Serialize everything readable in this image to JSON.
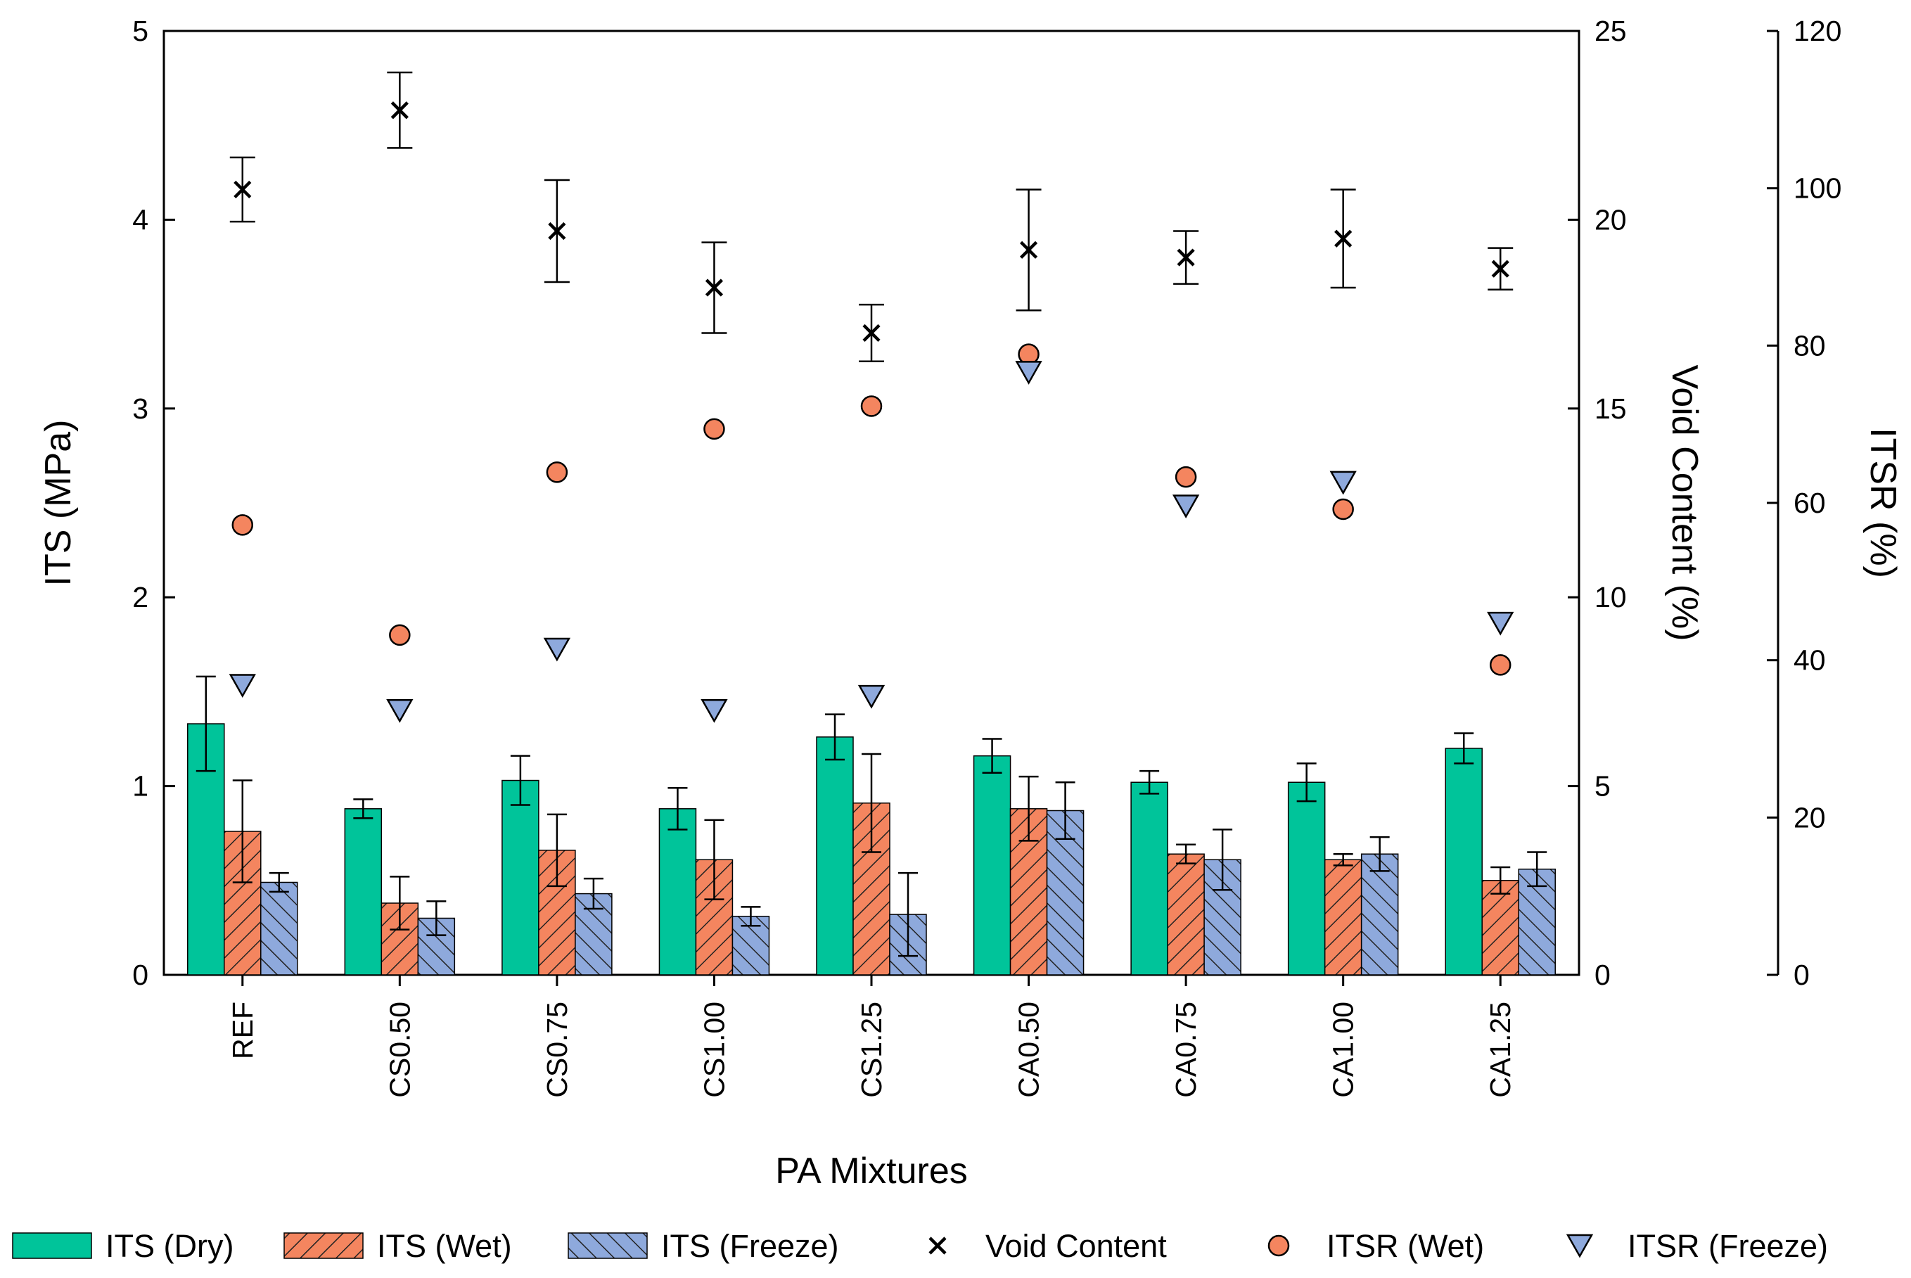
{
  "chart_data": {
    "type": "bar",
    "xlabel": "PA Mixtures",
    "ylabel": "ITS (MPa)",
    "y2label": "Void Content (%)",
    "y3label": "ITSR (%)",
    "ylim": [
      0,
      5
    ],
    "y2lim": [
      0,
      25
    ],
    "y3lim": [
      0,
      120
    ],
    "yticks": [
      "0",
      "1",
      "2",
      "3",
      "4",
      "5"
    ],
    "y2ticks": [
      "0",
      "5",
      "10",
      "15",
      "20",
      "25"
    ],
    "y3ticks": [
      "0",
      "20",
      "40",
      "60",
      "80",
      "100",
      "120"
    ],
    "grid": false,
    "legend_position": "bottom",
    "categories": [
      "REF",
      "CS0.50",
      "CS0.75",
      "CS1.00",
      "CS1.25",
      "CA0.50",
      "CA0.75",
      "CA1.00",
      "CA1.25"
    ],
    "bar_series": [
      {
        "name": "ITS (Dry)",
        "axis": "left",
        "color": "#00c49a",
        "pattern": "solid",
        "values": [
          1.33,
          0.88,
          1.03,
          0.88,
          1.26,
          1.16,
          1.02,
          1.02,
          1.2
        ],
        "errors": [
          0.25,
          0.05,
          0.13,
          0.11,
          0.12,
          0.09,
          0.06,
          0.1,
          0.08
        ]
      },
      {
        "name": "ITS (Wet)",
        "axis": "left",
        "color": "#f4855f",
        "pattern": "hatch-right",
        "values": [
          0.76,
          0.38,
          0.66,
          0.61,
          0.91,
          0.88,
          0.64,
          0.61,
          0.5
        ],
        "errors": [
          0.27,
          0.14,
          0.19,
          0.21,
          0.26,
          0.17,
          0.05,
          0.03,
          0.07
        ]
      },
      {
        "name": "ITS (Freeze)",
        "axis": "left",
        "color": "#8ea9dc",
        "pattern": "hatch-left",
        "values": [
          0.49,
          0.3,
          0.43,
          0.31,
          0.32,
          0.87,
          0.61,
          0.64,
          0.56
        ],
        "errors": [
          0.05,
          0.09,
          0.08,
          0.05,
          0.22,
          0.15,
          0.16,
          0.09,
          0.09
        ]
      }
    ],
    "point_series": [
      {
        "name": "Void Content",
        "axis": "right1",
        "marker": "x",
        "color": "#000000",
        "values": [
          20.8,
          22.9,
          19.7,
          18.2,
          17.0,
          19.2,
          19.0,
          19.5,
          18.7
        ],
        "errors": [
          0.85,
          1.0,
          1.35,
          1.2,
          0.75,
          1.6,
          0.7,
          1.3,
          0.55
        ]
      },
      {
        "name": "ITSR (Wet)",
        "axis": "right2",
        "marker": "circle",
        "color": "#f4855f",
        "values": [
          57.2,
          43.2,
          63.9,
          69.4,
          72.3,
          78.9,
          63.3,
          59.2,
          39.4
        ]
      },
      {
        "name": "ITSR (Freeze)",
        "axis": "right2",
        "marker": "triangle-down",
        "color": "#8ea9dc",
        "values": [
          36.8,
          33.6,
          41.4,
          33.6,
          35.4,
          76.6,
          59.6,
          62.6,
          44.7
        ]
      }
    ]
  },
  "legend": {
    "items": [
      {
        "label": "ITS (Dry)",
        "kind": "bar-solid",
        "color": "#00c49a"
      },
      {
        "label": "ITS (Wet)",
        "kind": "bar-hatch-right",
        "color": "#f4855f"
      },
      {
        "label": "ITS (Freeze)",
        "kind": "bar-hatch-left",
        "color": "#8ea9dc"
      },
      {
        "label": "Void Content",
        "kind": "marker-x",
        "color": "#000000"
      },
      {
        "label": "ITSR (Wet)",
        "kind": "marker-circle",
        "color": "#f4855f"
      },
      {
        "label": "ITSR (Freeze)",
        "kind": "marker-triangle",
        "color": "#8ea9dc"
      }
    ]
  }
}
